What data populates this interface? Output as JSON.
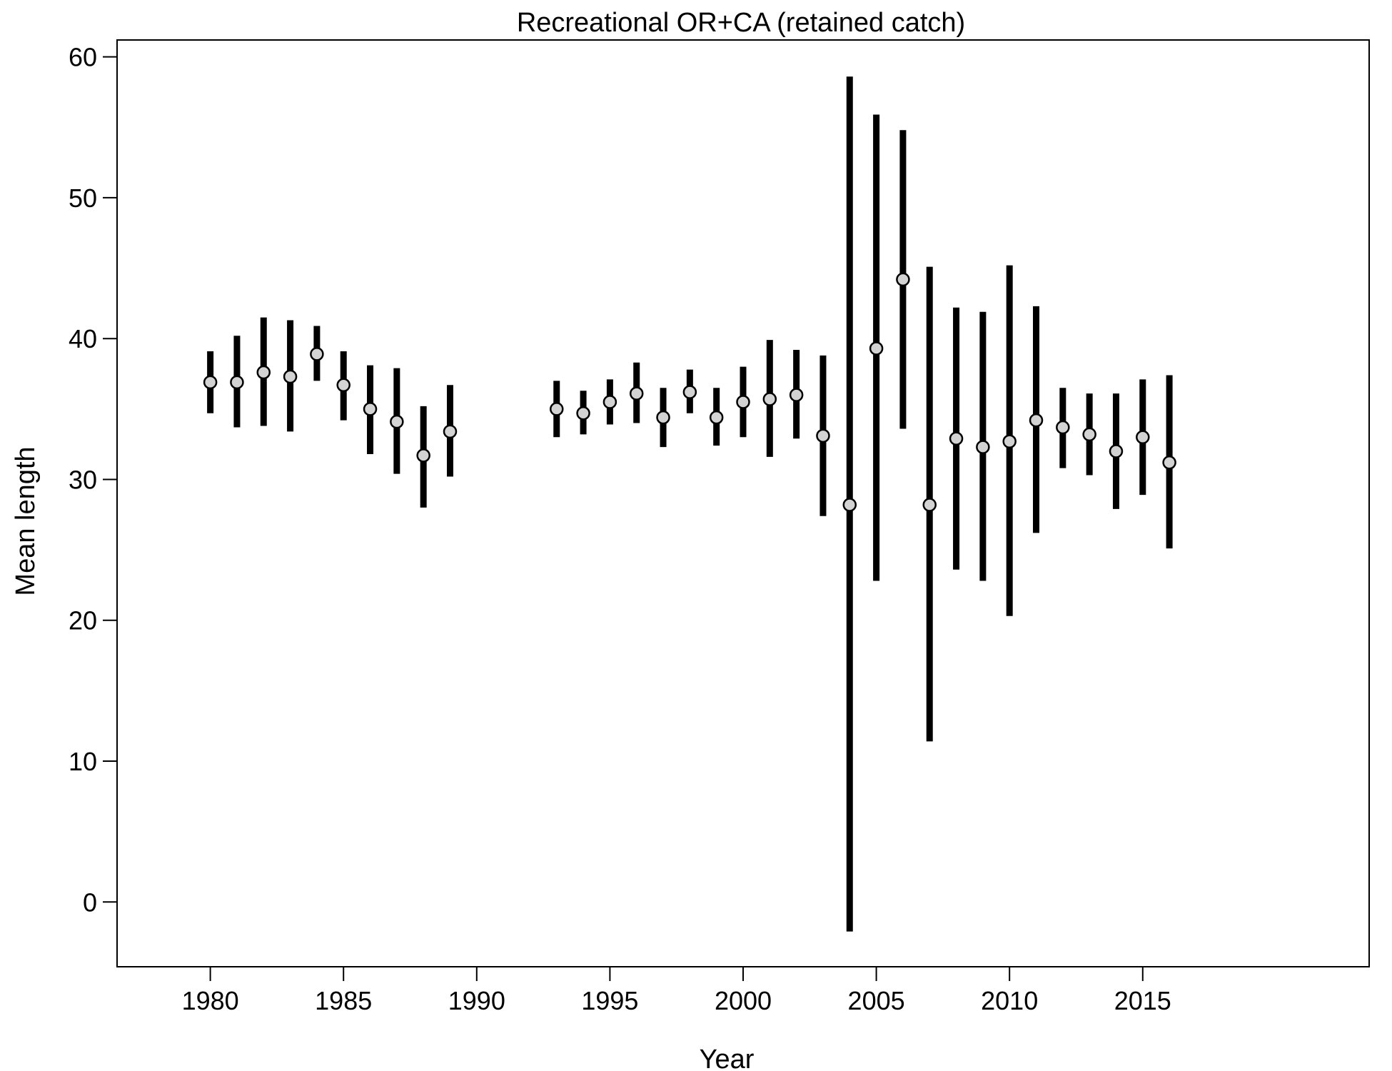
{
  "chart_data": {
    "type": "scatter",
    "title": "Recreational OR+CA (retained catch)",
    "xlabel": "Year",
    "ylabel": "Mean length",
    "xlim": [
      1976.5,
      2023.5
    ],
    "ylim": [
      -4.6,
      61.2
    ],
    "x_ticks": [
      1980,
      1985,
      1990,
      1995,
      2000,
      2005,
      2010,
      2015
    ],
    "y_ticks": [
      0,
      10,
      20,
      30,
      40,
      50,
      60
    ],
    "grid": false,
    "legend": "none",
    "marker_fill": "#d3d3d3",
    "marker_edge": "#000000",
    "errorbar_color": "#000000",
    "points": [
      {
        "x": 1980,
        "y": 36.9,
        "lo": 34.7,
        "hi": 39.1
      },
      {
        "x": 1981,
        "y": 36.9,
        "lo": 33.7,
        "hi": 40.2
      },
      {
        "x": 1982,
        "y": 37.6,
        "lo": 33.8,
        "hi": 41.5
      },
      {
        "x": 1983,
        "y": 37.3,
        "lo": 33.4,
        "hi": 41.3
      },
      {
        "x": 1984,
        "y": 38.9,
        "lo": 37.0,
        "hi": 40.9
      },
      {
        "x": 1985,
        "y": 36.7,
        "lo": 34.2,
        "hi": 39.1
      },
      {
        "x": 1986,
        "y": 35.0,
        "lo": 31.8,
        "hi": 38.1
      },
      {
        "x": 1987,
        "y": 34.1,
        "lo": 30.4,
        "hi": 37.9
      },
      {
        "x": 1988,
        "y": 31.7,
        "lo": 28.0,
        "hi": 35.2
      },
      {
        "x": 1989,
        "y": 33.4,
        "lo": 30.2,
        "hi": 36.7
      },
      {
        "x": 1993,
        "y": 35.0,
        "lo": 33.0,
        "hi": 37.0
      },
      {
        "x": 1994,
        "y": 34.7,
        "lo": 33.2,
        "hi": 36.3
      },
      {
        "x": 1995,
        "y": 35.5,
        "lo": 33.9,
        "hi": 37.1
      },
      {
        "x": 1996,
        "y": 36.1,
        "lo": 34.0,
        "hi": 38.3
      },
      {
        "x": 1997,
        "y": 34.4,
        "lo": 32.3,
        "hi": 36.5
      },
      {
        "x": 1998,
        "y": 36.2,
        "lo": 34.7,
        "hi": 37.8
      },
      {
        "x": 1999,
        "y": 34.4,
        "lo": 32.4,
        "hi": 36.5
      },
      {
        "x": 2000,
        "y": 35.5,
        "lo": 33.0,
        "hi": 38.0
      },
      {
        "x": 2001,
        "y": 35.7,
        "lo": 31.6,
        "hi": 39.9
      },
      {
        "x": 2002,
        "y": 36.0,
        "lo": 32.9,
        "hi": 39.2
      },
      {
        "x": 2003,
        "y": 33.1,
        "lo": 27.4,
        "hi": 38.8
      },
      {
        "x": 2004,
        "y": 28.2,
        "lo": -2.1,
        "hi": 58.6
      },
      {
        "x": 2005,
        "y": 39.3,
        "lo": 22.8,
        "hi": 55.9
      },
      {
        "x": 2006,
        "y": 44.2,
        "lo": 33.6,
        "hi": 54.8
      },
      {
        "x": 2007,
        "y": 28.2,
        "lo": 11.4,
        "hi": 45.1
      },
      {
        "x": 2008,
        "y": 32.9,
        "lo": 23.6,
        "hi": 42.2
      },
      {
        "x": 2009,
        "y": 32.3,
        "lo": 22.8,
        "hi": 41.9
      },
      {
        "x": 2010,
        "y": 32.7,
        "lo": 20.3,
        "hi": 45.2
      },
      {
        "x": 2011,
        "y": 34.2,
        "lo": 26.2,
        "hi": 42.3
      },
      {
        "x": 2012,
        "y": 33.7,
        "lo": 30.8,
        "hi": 36.5
      },
      {
        "x": 2013,
        "y": 33.2,
        "lo": 30.3,
        "hi": 36.1
      },
      {
        "x": 2014,
        "y": 32.0,
        "lo": 27.9,
        "hi": 36.1
      },
      {
        "x": 2015,
        "y": 33.0,
        "lo": 28.9,
        "hi": 37.1
      },
      {
        "x": 2016,
        "y": 31.2,
        "lo": 25.1,
        "hi": 37.4
      }
    ]
  }
}
